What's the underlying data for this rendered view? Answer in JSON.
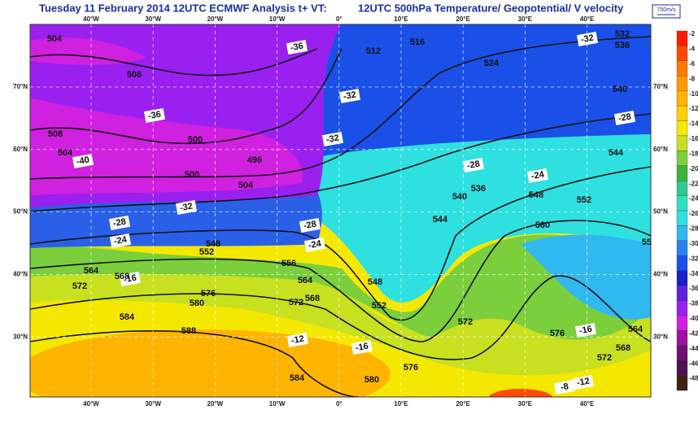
{
  "header": {
    "title_left": "Tuesday 11 February 2014 12UTC ECMWF  Analysis t+  VT:",
    "title_right": "12UTC 500hPa Temperature/  Geopotential/  V velocity",
    "wind_key": "750m/s"
  },
  "map": {
    "longitudes": [
      "40°W",
      "30°W",
      "20°W",
      "10°W",
      "0°",
      "10°E",
      "20°E",
      "30°E",
      "40°E"
    ],
    "latitudes": [
      "70°N",
      "60°N",
      "50°N",
      "40°N",
      "30°N"
    ],
    "contour_labels": [
      "504",
      "508",
      "508",
      "504",
      "500",
      "500",
      "496",
      "504",
      "-36",
      "-36",
      "-40",
      "-32",
      "-32",
      "-32",
      "-28",
      "-28",
      "-24",
      "-32",
      "532",
      "536",
      "512",
      "516",
      "524",
      "540",
      "544",
      "552",
      "548",
      "560",
      "556",
      "536",
      "540",
      "544",
      "548",
      "552",
      "548",
      "552",
      "556",
      "564",
      "568",
      "572",
      "576",
      "580",
      "584",
      "588",
      "584",
      "580",
      "576",
      "-16",
      "-12",
      "-16",
      "-12",
      "-8",
      "572",
      "572",
      "568",
      "564",
      "576",
      "-24",
      "-28",
      "-24",
      "-28",
      "-16",
      "572",
      "568",
      "564"
    ]
  },
  "colorbar": {
    "labels": [
      -2,
      -4,
      -6,
      -8,
      -10,
      -12,
      -14,
      -16,
      -18,
      -20,
      -22,
      -24,
      -26,
      -28,
      -30,
      -32,
      -34,
      -36,
      -38,
      -40,
      -42,
      -44,
      -46,
      -48
    ],
    "colors": [
      "#ff1a00",
      "#ff4a00",
      "#ff7a00",
      "#ff9a00",
      "#ffb400",
      "#ffd000",
      "#f5e800",
      "#c8e020",
      "#7ccf3c",
      "#3cb43c",
      "#30c890",
      "#30e0c0",
      "#2ee0e0",
      "#30b8f0",
      "#2a80f0",
      "#1a50e8",
      "#1a20c8",
      "#6020e0",
      "#9a20f0",
      "#d020e0",
      "#a010a0",
      "#701070",
      "#501050",
      "#402010"
    ]
  }
}
